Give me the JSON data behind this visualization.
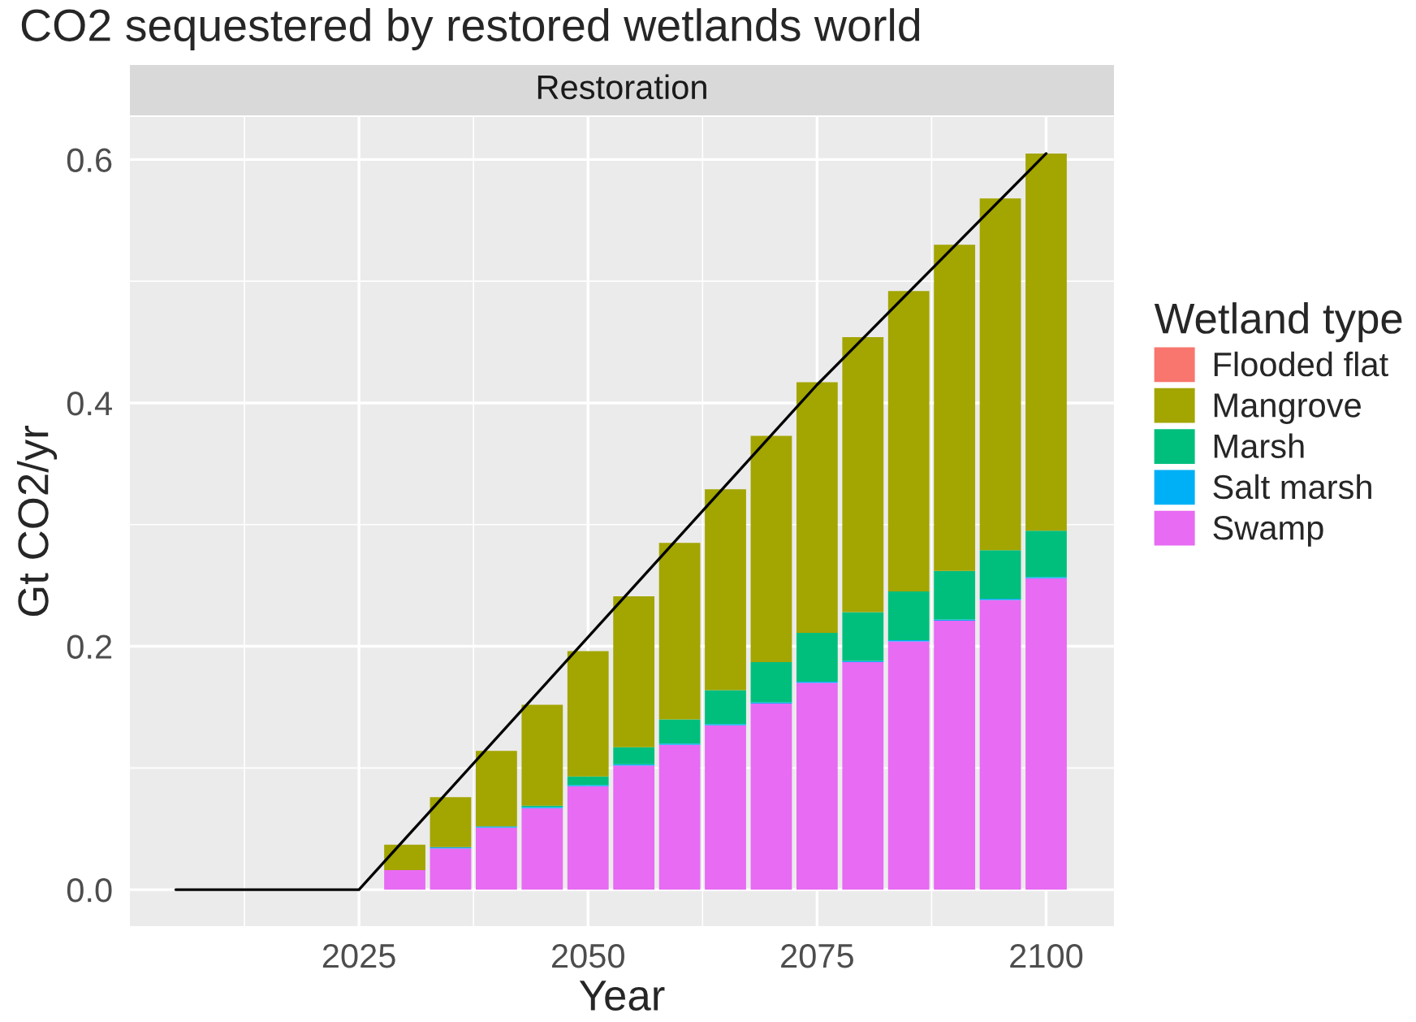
{
  "chart_data": {
    "type": "bar",
    "title": "CO2 sequestered by restored wetlands world",
    "subtitle": "Restoration",
    "xlabel": "Year",
    "ylabel": "Gt CO2/yr",
    "legend_title": "Wetland type",
    "stacked": true,
    "x": [
      2030,
      2035,
      2040,
      2045,
      2050,
      2055,
      2060,
      2065,
      2070,
      2075,
      2080,
      2085,
      2090,
      2095,
      2100
    ],
    "series": [
      {
        "name": "Swamp",
        "color": "#e76bf3",
        "values": [
          0.016,
          0.034,
          0.051,
          0.067,
          0.085,
          0.102,
          0.119,
          0.135,
          0.153,
          0.17,
          0.187,
          0.204,
          0.221,
          0.238,
          0.256
        ]
      },
      {
        "name": "Salt marsh",
        "color": "#00b0f6",
        "values": [
          null,
          0.001,
          0.001,
          0.001,
          0.001,
          0.001,
          0.001,
          0.001,
          0.001,
          0.001,
          0.001,
          0.001,
          0.001,
          0.001,
          0.001
        ]
      },
      {
        "name": "Marsh",
        "color": "#00bf7d",
        "values": [
          null,
          null,
          null,
          0.001,
          0.007,
          0.014,
          0.02,
          0.028,
          0.033,
          0.04,
          0.04,
          0.04,
          0.04,
          0.04,
          0.038
        ]
      },
      {
        "name": "Mangrove",
        "color": "#a3a500",
        "values": [
          0.021,
          0.041,
          0.062,
          0.083,
          0.103,
          0.124,
          0.145,
          0.165,
          0.186,
          0.206,
          0.226,
          0.247,
          0.268,
          0.289,
          0.31
        ]
      },
      {
        "name": "Flooded flat",
        "color": "#f8766d",
        "values": [
          null,
          null,
          null,
          null,
          null,
          null,
          null,
          null,
          null,
          null,
          null,
          null,
          null,
          null,
          null
        ]
      },
      {
        "type": "line",
        "color": "#000000",
        "x": [
          2005,
          2025,
          2075,
          2100
        ],
        "values": [
          0,
          0,
          0.415,
          0.605
        ]
      }
    ],
    "xlim": [
      2000,
      2107.4
    ],
    "xticks": [
      2025,
      2050,
      2075,
      2100
    ],
    "ylim": [
      -0.03,
      0.635
    ],
    "yticks": [
      {
        "value": 0,
        "label": "0.0"
      },
      {
        "value": 0.2,
        "label": "0.2"
      },
      {
        "value": 0.4,
        "label": "0.4"
      },
      {
        "value": 0.6,
        "label": "0.6"
      }
    ],
    "grid": true,
    "legend": "right"
  }
}
